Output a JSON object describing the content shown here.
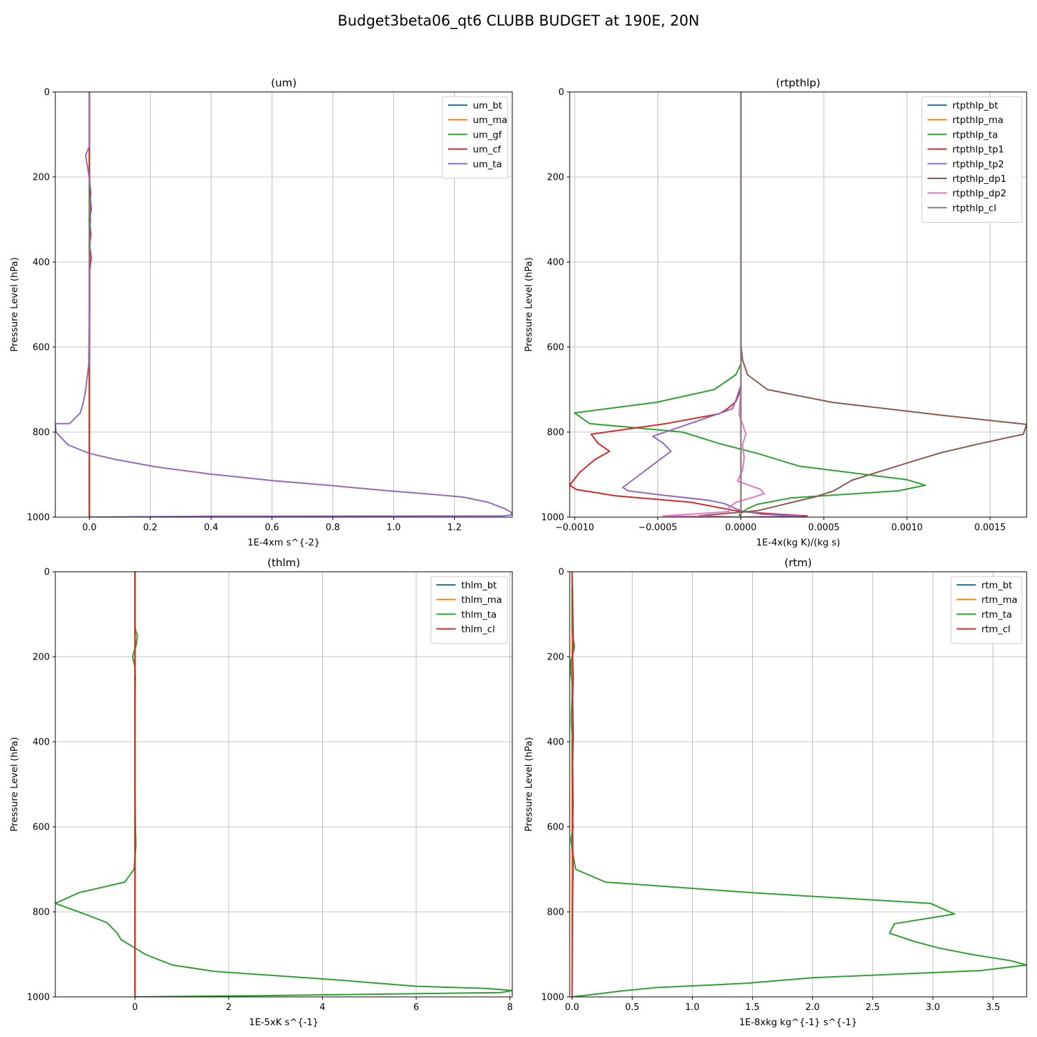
{
  "figure": {
    "title": "Budget3beta06_qt6 CLUBB BUDGET at 190E, 20N"
  },
  "colors": {
    "tab_blue": "#1f77b4",
    "tab_orange": "#ff7f0e",
    "tab_green": "#2ca02c",
    "tab_red": "#d62728",
    "tab_purple": "#9467bd",
    "tab_brown": "#8c564b",
    "tab_pink": "#e377c2",
    "tab_gray": "#7f7f7f"
  },
  "chart_data": [
    {
      "type": "line",
      "title": "(um)",
      "xlabel": "1E-4xm s^{-2}",
      "ylabel": "Pressure Level (hPa)",
      "xlim": [
        -0.112,
        1.39
      ],
      "ylim": [
        1000,
        0
      ],
      "xticks": [
        0.0,
        0.2,
        0.4,
        0.6,
        0.8,
        1.0,
        1.2
      ],
      "xtick_labels": [
        "0.0",
        "0.2",
        "0.4",
        "0.6",
        "0.8",
        "1.0",
        "1.2"
      ],
      "yticks": [
        0,
        200,
        400,
        600,
        800,
        1000
      ],
      "ytick_labels": [
        "0",
        "200",
        "400",
        "600",
        "800",
        "1000"
      ],
      "grid": true,
      "legend": "upper right",
      "series": [
        {
          "name": "um_bt",
          "color": "#1f77b4",
          "x": [
            0,
            0
          ],
          "y": [
            0,
            1000
          ]
        },
        {
          "name": "um_ma",
          "color": "#ff7f0e",
          "x": [
            0,
            0
          ],
          "y": [
            0,
            1000
          ]
        },
        {
          "name": "um_gf",
          "color": "#2ca02c",
          "x": [
            0,
            0
          ],
          "y": [
            0,
            1000
          ]
        },
        {
          "name": "um_cf",
          "color": "#d62728",
          "x": [
            0,
            0,
            0.002,
            0.006,
            0.001,
            0.005,
            0.001,
            0.006,
            0.001,
            0.001,
            0,
            0,
            0
          ],
          "y": [
            0,
            180,
            235,
            275,
            305,
            335,
            360,
            390,
            420,
            500,
            600,
            700,
            1000
          ]
        },
        {
          "name": "um_ta",
          "color": "#9467bd",
          "x": [
            0,
            0,
            0,
            -0.012,
            -0.01,
            -0.003,
            0.005,
            0.002,
            0.004,
            0,
            0.002,
            0,
            0,
            -0.002,
            -0.012,
            -0.02,
            -0.03,
            -0.065,
            -0.112,
            -0.11,
            -0.07,
            0,
            0.09,
            0.22,
            0.4,
            0.6,
            0.8,
            0.98,
            1.09,
            1.23,
            1.31,
            1.365,
            1.39,
            1.385,
            1.36,
            0.4,
            0
          ],
          "y": [
            0,
            100,
            127,
            148,
            160,
            190,
            235,
            275,
            300,
            335,
            360,
            390,
            500,
            640,
            700,
            730,
            755,
            780,
            780,
            800,
            830,
            850,
            865,
            882,
            899,
            914,
            926,
            938,
            944,
            953,
            965,
            980,
            990,
            995,
            997,
            998,
            1000
          ]
        }
      ]
    },
    {
      "type": "line",
      "title": "(rtpthlp)",
      "xlabel": "1E-4x(kg K)/(kg s)",
      "ylabel": "Pressure Level (hPa)",
      "xlim": [
        -0.00103,
        0.00172
      ],
      "ylim": [
        1000,
        0
      ],
      "xticks": [
        -0.001,
        -0.0005,
        0.0,
        0.0005,
        0.001,
        0.0015
      ],
      "xtick_labels": [
        "−0.0010",
        "−0.0005",
        "0.0000",
        "0.0005",
        "0.0010",
        "0.0015"
      ],
      "yticks": [
        0,
        200,
        400,
        600,
        800,
        1000
      ],
      "ytick_labels": [
        "0",
        "200",
        "400",
        "600",
        "800",
        "1000"
      ],
      "grid": true,
      "legend": "upper right",
      "series": [
        {
          "name": "rtpthlp_bt",
          "color": "#1f77b4",
          "x": [
            0,
            0
          ],
          "y": [
            0,
            1000
          ]
        },
        {
          "name": "rtpthlp_ma",
          "color": "#ff7f0e",
          "x": [
            0,
            0
          ],
          "y": [
            0,
            1000
          ]
        },
        {
          "name": "rtpthlp_ta",
          "color": "#2ca02c",
          "x": [
            0,
            0,
            -3e-05,
            -0.00016,
            -0.00051,
            -0.001,
            -0.00091,
            -0.00035,
            -0.00013,
            0.0001,
            0.00035,
            0.001,
            0.00111,
            0.00095,
            0.0003,
            0.0001,
            4e-05,
            2e-05,
            -1e-05,
            0
          ],
          "y": [
            0,
            640,
            665,
            700,
            730,
            755,
            780,
            800,
            827,
            850,
            880,
            912,
            925,
            938,
            955,
            970,
            980,
            985,
            995,
            1000
          ]
        },
        {
          "name": "rtpthlp_tp1",
          "color": "#d62728",
          "x": [
            0,
            0,
            -3e-05,
            -8e-05,
            -0.00013,
            -0.00045,
            -0.0009,
            -0.00086,
            -0.00079,
            -0.00088,
            -0.00097,
            -0.00103,
            -0.00099,
            -0.00075,
            -0.0003,
            -0.0001,
            0,
            0.00018,
            0.0004,
            0.0002,
            0
          ],
          "y": [
            0,
            700,
            728,
            745,
            757,
            780,
            805,
            826,
            845,
            865,
            895,
            925,
            935,
            950,
            965,
            980,
            987,
            992,
            997,
            999,
            1000
          ]
        },
        {
          "name": "rtpthlp_tp2",
          "color": "#9467bd",
          "x": [
            0,
            0,
            -3e-05,
            -5e-05,
            -0.00012,
            -0.00053,
            -0.00047,
            -0.00042,
            -0.00071,
            -0.00068,
            -0.00048,
            -0.0002,
            -0.0001,
            0,
            0.00012,
            0.00036,
            0.00022,
            0
          ],
          "y": [
            0,
            690,
            725,
            745,
            755,
            810,
            825,
            845,
            930,
            938,
            948,
            960,
            968,
            985,
            993,
            997,
            999,
            1000
          ]
        },
        {
          "name": "rtpthlp_dp1",
          "color": "#8c564b",
          "x": [
            0,
            0,
            1e-05,
            4e-05,
            0.00016,
            0.00055,
            0.0012,
            0.00172,
            0.0017,
            0.00143,
            0.00121,
            0.00104,
            0.00067,
            0.00056,
            0.00045,
            0.00028,
            0.0001,
            -0.00025,
            0
          ],
          "y": [
            0,
            590,
            630,
            665,
            700,
            730,
            760,
            782,
            805,
            828,
            848,
            868,
            913,
            938,
            952,
            968,
            985,
            997,
            1000
          ]
        },
        {
          "name": "rtpthlp_dp2",
          "color": "#e377c2",
          "x": [
            0,
            0,
            -1e-05,
            1e-05,
            3e-05,
            1e-05,
            2e-05,
            1e-05,
            -2e-05,
            0.00012,
            0.00014,
            6e-05,
            -3e-05,
            -8e-05,
            -7e-05,
            -0.00018,
            -0.00047,
            0
          ],
          "y": [
            0,
            700,
            760,
            780,
            805,
            830,
            860,
            890,
            915,
            935,
            945,
            955,
            965,
            980,
            987,
            990,
            997,
            1000
          ]
        },
        {
          "name": "rtpthlp_cl",
          "color": "#7f7f7f",
          "x": [
            0,
            0
          ],
          "y": [
            0,
            1000
          ]
        }
      ]
    },
    {
      "type": "line",
      "title": "(thlm)",
      "xlabel": "1E-5xK s^{-1}",
      "ylabel": "Pressure Level (hPa)",
      "xlim": [
        -1.7,
        8.05
      ],
      "ylim": [
        1000,
        0
      ],
      "xticks": [
        0,
        2,
        4,
        6,
        8
      ],
      "xtick_labels": [
        "0",
        "2",
        "4",
        "6",
        "8"
      ],
      "yticks": [
        0,
        200,
        400,
        600,
        800,
        1000
      ],
      "ytick_labels": [
        "0",
        "200",
        "400",
        "600",
        "800",
        "1000"
      ],
      "grid": true,
      "legend": "upper right",
      "series": [
        {
          "name": "thlm_bt",
          "color": "#1f77b4",
          "x": [
            0,
            0
          ],
          "y": [
            0,
            1000
          ]
        },
        {
          "name": "thlm_ma",
          "color": "#ff7f0e",
          "x": [
            0,
            0
          ],
          "y": [
            0,
            1000
          ]
        },
        {
          "name": "thlm_ta",
          "color": "#2ca02c",
          "x": [
            0,
            0,
            0.02,
            0.05,
            0.03,
            0.01,
            -0.03,
            -0.05,
            -0.03,
            0,
            0.01,
            0,
            0,
            0.01,
            0.02,
            0.01,
            -0.02,
            -0.22,
            -1.2,
            -1.7,
            -1.2,
            -0.6,
            -0.38,
            -0.3,
            0,
            0.22,
            0.45,
            0.8,
            1.7,
            4.3,
            6.0,
            7.5,
            8.05,
            7.8,
            2.6,
            0
          ],
          "y": [
            0,
            130,
            140,
            150,
            170,
            180,
            190,
            200,
            210,
            225,
            250,
            300,
            500,
            600,
            640,
            660,
            700,
            730,
            755,
            780,
            800,
            825,
            850,
            865,
            885,
            900,
            910,
            925,
            940,
            960,
            975,
            980,
            985,
            990,
            997,
            1000
          ]
        },
        {
          "name": "thlm_cl",
          "color": "#d62728",
          "x": [
            0,
            0
          ],
          "y": [
            0,
            1000
          ]
        }
      ]
    },
    {
      "type": "line",
      "title": "(rtm)",
      "xlabel": "1E-8xkg kg^{-1} s^{-1}",
      "ylabel": "Pressure Level (hPa)",
      "xlim": [
        -0.02,
        3.78
      ],
      "ylim": [
        1000,
        0
      ],
      "xticks": [
        0,
        0.5,
        1.0,
        1.5,
        2.0,
        2.5,
        3.0,
        3.5
      ],
      "xtick_labels": [
        "0.0",
        "0.5",
        "1.0",
        "1.5",
        "2.0",
        "2.5",
        "3.0",
        "3.5"
      ],
      "yticks": [
        0,
        200,
        400,
        600,
        800,
        1000
      ],
      "ytick_labels": [
        "0",
        "200",
        "400",
        "600",
        "800",
        "1000"
      ],
      "grid": true,
      "legend": "upper right",
      "series": [
        {
          "name": "rtm_bt",
          "color": "#1f77b4",
          "x": [
            0,
            0
          ],
          "y": [
            0,
            1000
          ]
        },
        {
          "name": "rtm_ma",
          "color": "#ff7f0e",
          "x": [
            0,
            0
          ],
          "y": [
            0,
            1000
          ]
        },
        {
          "name": "rtm_ta",
          "color": "#2ca02c",
          "x": [
            0,
            0,
            0.01,
            0.02,
            0.01,
            -0.01,
            -0.01,
            0,
            0,
            -0.005,
            -0.005,
            0,
            0,
            0.005,
            0.01,
            -0.01,
            0.005,
            0.03,
            0.28,
            1.5,
            2.98,
            3.18,
            2.68,
            2.64,
            2.85,
            3.05,
            3.32,
            3.65,
            3.78,
            3.4,
            2.0,
            1.45,
            0.7,
            0.38,
            0.24,
            0
          ],
          "y": [
            0,
            135,
            160,
            175,
            190,
            210,
            240,
            260,
            300,
            330,
            360,
            380,
            400,
            590,
            600,
            630,
            660,
            700,
            730,
            755,
            780,
            805,
            828,
            850,
            870,
            885,
            900,
            915,
            925,
            938,
            955,
            968,
            978,
            987,
            992,
            1000
          ]
        },
        {
          "name": "rtm_cl",
          "color": "#d62728",
          "x": [
            0,
            0.01,
            0.005,
            0.01,
            0.005,
            0.01,
            0.005,
            0.008,
            0.005,
            0.008,
            0.003,
            0.0
          ],
          "y": [
            0,
            160,
            200,
            250,
            300,
            385,
            450,
            550,
            600,
            700,
            800,
            1000
          ]
        }
      ]
    }
  ]
}
